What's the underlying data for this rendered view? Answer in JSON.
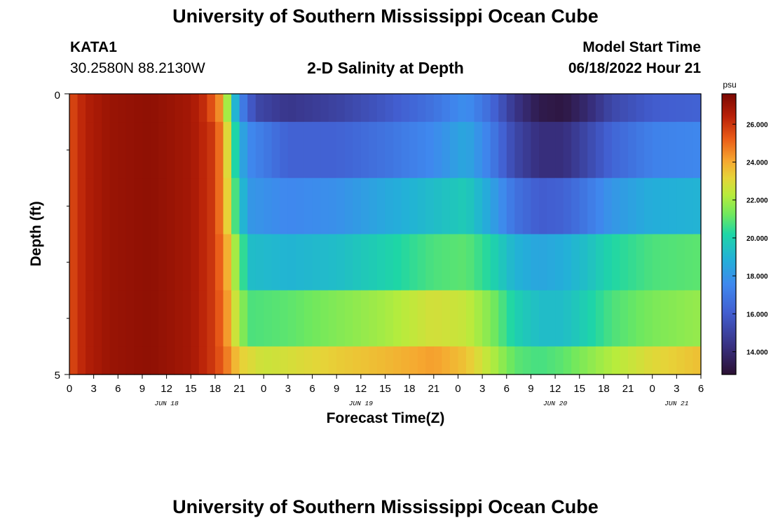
{
  "header": {
    "title": "University of Southern Mississippi Ocean Cube",
    "station": "KATA1",
    "coords": "30.2580N  88.2130W",
    "subtitle": "2-D Salinity at Depth",
    "model_start_label": "Model Start Time",
    "model_start_value": "06/18/2022 Hour 21"
  },
  "footer": {
    "title": "University of Southern Mississippi Ocean Cube"
  },
  "chart_data": {
    "type": "heatmap",
    "title": "2-D Salinity at Depth",
    "xlabel": "Forecast Time(Z)",
    "ylabel": "Depth (ft)",
    "x_range_hours": [
      0,
      78
    ],
    "x_tick_labels": [
      "0",
      "3",
      "6",
      "9",
      "12",
      "15",
      "18",
      "21",
      "0",
      "3",
      "6",
      "9",
      "12",
      "15",
      "18",
      "21",
      "0",
      "3",
      "6",
      "9",
      "12",
      "15",
      "18",
      "21",
      "0",
      "3",
      "6"
    ],
    "date_labels": [
      {
        "label": "JUN 18",
        "hour": 12
      },
      {
        "label": "JUN 19",
        "hour": 36
      },
      {
        "label": "JUN 20",
        "hour": 60
      },
      {
        "label": "JUN 21",
        "hour": 75
      }
    ],
    "y_range_ft": [
      0,
      5
    ],
    "y_tick_labels": [
      "0",
      "5"
    ],
    "colorbar": {
      "unit": "psu",
      "min": 12.8,
      "max": 27.6,
      "tick_labels": [
        "14.000",
        "16.000",
        "18.000",
        "20.000",
        "22.000",
        "24.000",
        "26.000"
      ],
      "tick_values": [
        14,
        16,
        18,
        20,
        22,
        24,
        26
      ]
    },
    "depth_layers": [
      {
        "depth_ft": [
          0.0,
          0.5
        ],
        "keyframes": [
          [
            0,
            25.5
          ],
          [
            2,
            26.5
          ],
          [
            5,
            27
          ],
          [
            10,
            27.2
          ],
          [
            15,
            26.8
          ],
          [
            17,
            26
          ],
          [
            18.5,
            24.5
          ],
          [
            19.5,
            22
          ],
          [
            20.5,
            19
          ],
          [
            21.5,
            17
          ],
          [
            23,
            15.2
          ],
          [
            27,
            14.5
          ],
          [
            33,
            15
          ],
          [
            39,
            15.8
          ],
          [
            45,
            16.8
          ],
          [
            49,
            17.8
          ],
          [
            52,
            16.5
          ],
          [
            55,
            14.5
          ],
          [
            58,
            13.3
          ],
          [
            61,
            13.1
          ],
          [
            64,
            14
          ],
          [
            67,
            15.2
          ],
          [
            72,
            16
          ],
          [
            78,
            16.2
          ]
        ]
      },
      {
        "depth_ft": [
          0.5,
          1.5
        ],
        "keyframes": [
          [
            0,
            25.5
          ],
          [
            2,
            26.5
          ],
          [
            5,
            27
          ],
          [
            10,
            27.2
          ],
          [
            15,
            26.8
          ],
          [
            17.5,
            26
          ],
          [
            19,
            24.5
          ],
          [
            20,
            21.5
          ],
          [
            21,
            18.8
          ],
          [
            22.5,
            17.5
          ],
          [
            27,
            16.2
          ],
          [
            33,
            16.2
          ],
          [
            39,
            16.8
          ],
          [
            45,
            17.6
          ],
          [
            49,
            18.6
          ],
          [
            52,
            17.2
          ],
          [
            55,
            15.2
          ],
          [
            58,
            14.2
          ],
          [
            61,
            14.2
          ],
          [
            64,
            15.2
          ],
          [
            67,
            16.3
          ],
          [
            72,
            17.3
          ],
          [
            78,
            17.5
          ]
        ]
      },
      {
        "depth_ft": [
          1.5,
          2.5
        ],
        "keyframes": [
          [
            0,
            25.5
          ],
          [
            2,
            26.5
          ],
          [
            5,
            27
          ],
          [
            10,
            27.2
          ],
          [
            15,
            26.8
          ],
          [
            17.5,
            26
          ],
          [
            19,
            24.5
          ],
          [
            20,
            22
          ],
          [
            21,
            19.5
          ],
          [
            22.5,
            18
          ],
          [
            27,
            17.5
          ],
          [
            33,
            17.8
          ],
          [
            39,
            18.6
          ],
          [
            45,
            19.3
          ],
          [
            49,
            19.8
          ],
          [
            52,
            18.5
          ],
          [
            55,
            16.8
          ],
          [
            58,
            16
          ],
          [
            61,
            16.2
          ],
          [
            64,
            17
          ],
          [
            67,
            18
          ],
          [
            72,
            18.8
          ],
          [
            78,
            19
          ]
        ]
      },
      {
        "depth_ft": [
          2.5,
          3.5
        ],
        "keyframes": [
          [
            0,
            25.5
          ],
          [
            2,
            26.5
          ],
          [
            5,
            27
          ],
          [
            10,
            27.2
          ],
          [
            15,
            26.8
          ],
          [
            17.5,
            26
          ],
          [
            19,
            24.8
          ],
          [
            20,
            23
          ],
          [
            21,
            21
          ],
          [
            22.5,
            19.3
          ],
          [
            27,
            19
          ],
          [
            33,
            19.3
          ],
          [
            39,
            20
          ],
          [
            45,
            20.8
          ],
          [
            49,
            21
          ],
          [
            52,
            20.2
          ],
          [
            55,
            19
          ],
          [
            58,
            18.5
          ],
          [
            61,
            18.8
          ],
          [
            64,
            19.4
          ],
          [
            67,
            20.2
          ],
          [
            72,
            20.8
          ],
          [
            78,
            21
          ]
        ]
      },
      {
        "depth_ft": [
          3.5,
          4.5
        ],
        "keyframes": [
          [
            0,
            25.5
          ],
          [
            2,
            26.5
          ],
          [
            5,
            27
          ],
          [
            10,
            27.2
          ],
          [
            15,
            26.8
          ],
          [
            17.5,
            26
          ],
          [
            19,
            25
          ],
          [
            20,
            23.5
          ],
          [
            21,
            21.8
          ],
          [
            22.5,
            20.8
          ],
          [
            27,
            21
          ],
          [
            33,
            21.5
          ],
          [
            39,
            22
          ],
          [
            45,
            22.8
          ],
          [
            49,
            22.5
          ],
          [
            52,
            21.5
          ],
          [
            55,
            20
          ],
          [
            58,
            19.3
          ],
          [
            61,
            19.3
          ],
          [
            64,
            20
          ],
          [
            67,
            20.8
          ],
          [
            72,
            21.4
          ],
          [
            78,
            21.8
          ]
        ]
      },
      {
        "depth_ft": [
          4.5,
          5.0
        ],
        "keyframes": [
          [
            0,
            25.5
          ],
          [
            2,
            26.5
          ],
          [
            5,
            27
          ],
          [
            10,
            27.2
          ],
          [
            15,
            26.8
          ],
          [
            17.5,
            26
          ],
          [
            19,
            25.2
          ],
          [
            20,
            24.2
          ],
          [
            21,
            23.3
          ],
          [
            24,
            22.6
          ],
          [
            27,
            22.8
          ],
          [
            33,
            23.3
          ],
          [
            39,
            23.7
          ],
          [
            45,
            24.2
          ],
          [
            49,
            23.5
          ],
          [
            52,
            22.3
          ],
          [
            55,
            21
          ],
          [
            58,
            20.7
          ],
          [
            61,
            21
          ],
          [
            64,
            21.6
          ],
          [
            67,
            22.2
          ],
          [
            72,
            23
          ],
          [
            78,
            23.6
          ]
        ]
      }
    ]
  }
}
